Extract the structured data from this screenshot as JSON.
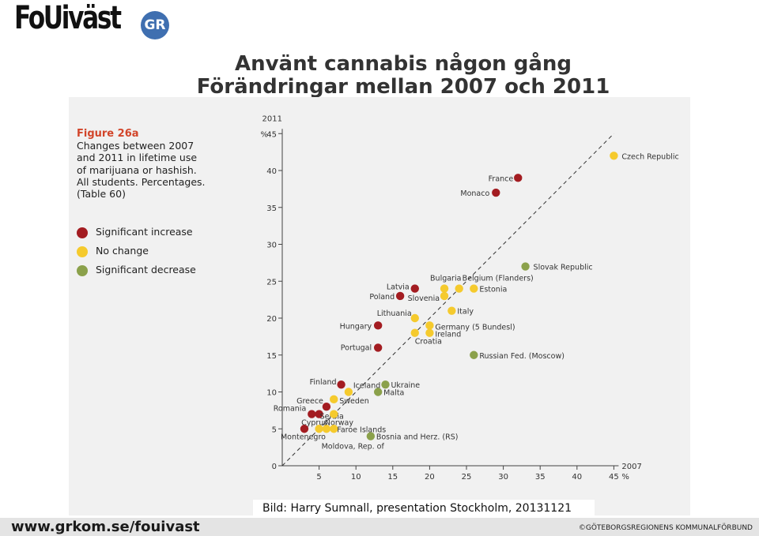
{
  "header": {
    "logo_text": "FoUiväst",
    "logo_badge": "GR",
    "title_line1": "Använt cannabis någon gång",
    "title_line2": "Förändringar mellan 2007 och 2011"
  },
  "figure": {
    "label": "Figure 26a",
    "desc_lines": [
      "Changes between 2007",
      "and 2011 in lifetime use",
      "of marijuana or hashish.",
      "All students. Percentages.",
      "(Table 60)"
    ]
  },
  "legend": [
    {
      "label": "Significant increase",
      "color": "#a31c21"
    },
    {
      "label": "No change",
      "color": "#f5ca2d"
    },
    {
      "label": "Significant decrease",
      "color": "#8ba14b"
    }
  ],
  "chart_data": {
    "type": "scatter",
    "x_year": "2007",
    "x_unit": "%",
    "y_year": "2011",
    "y_unit": "%",
    "xlim": [
      0,
      45
    ],
    "ylim": [
      0,
      45
    ],
    "x_ticks": [
      5,
      10,
      15,
      20,
      25,
      30,
      35,
      40,
      45
    ],
    "y_ticks": [
      0,
      5,
      10,
      15,
      20,
      25,
      30,
      35,
      40,
      45
    ],
    "diagonal": true,
    "points": [
      {
        "name": "Czech Republic",
        "x": 45,
        "y": 42,
        "status": "no_change"
      },
      {
        "name": "France",
        "x": 32,
        "y": 39,
        "status": "increase"
      },
      {
        "name": "Monaco",
        "x": 29,
        "y": 37,
        "status": "increase"
      },
      {
        "name": "Slovak Republic",
        "x": 33,
        "y": 27,
        "status": "decrease"
      },
      {
        "name": "Latvia",
        "x": 18,
        "y": 24,
        "status": "increase"
      },
      {
        "name": "Poland",
        "x": 16,
        "y": 23,
        "status": "increase"
      },
      {
        "name": "Bulgaria",
        "x": 22,
        "y": 24,
        "status": "no_change"
      },
      {
        "name": "Slovenia",
        "x": 22,
        "y": 23,
        "status": "no_change"
      },
      {
        "name": "Belgium (Flanders)",
        "x": 24,
        "y": 24,
        "status": "no_change"
      },
      {
        "name": "Estonia",
        "x": 26,
        "y": 24,
        "status": "no_change"
      },
      {
        "name": "Lithuania",
        "x": 18,
        "y": 20,
        "status": "no_change"
      },
      {
        "name": "Italy",
        "x": 23,
        "y": 21,
        "status": "no_change"
      },
      {
        "name": "Hungary",
        "x": 13,
        "y": 19,
        "status": "increase"
      },
      {
        "name": "Germany (5 Bundesl)",
        "x": 20,
        "y": 19,
        "status": "no_change"
      },
      {
        "name": "Ireland",
        "x": 20,
        "y": 18,
        "status": "no_change"
      },
      {
        "name": "Croatia",
        "x": 18,
        "y": 18,
        "status": "no_change"
      },
      {
        "name": "Portugal",
        "x": 13,
        "y": 16,
        "status": "increase"
      },
      {
        "name": "Russian Fed. (Moscow)",
        "x": 26,
        "y": 15,
        "status": "decrease"
      },
      {
        "name": "Finland",
        "x": 8,
        "y": 11,
        "status": "increase"
      },
      {
        "name": "Iceland",
        "x": 9,
        "y": 10,
        "status": "no_change"
      },
      {
        "name": "Ukraine",
        "x": 14,
        "y": 11,
        "status": "decrease"
      },
      {
        "name": "Malta",
        "x": 13,
        "y": 10,
        "status": "decrease"
      },
      {
        "name": "Sweden",
        "x": 7,
        "y": 9,
        "status": "no_change"
      },
      {
        "name": "Greece",
        "x": 6,
        "y": 8,
        "status": "increase"
      },
      {
        "name": "Romania",
        "x": 4,
        "y": 7,
        "status": "increase"
      },
      {
        "name": "Serbia",
        "x": 5,
        "y": 7,
        "status": "increase"
      },
      {
        "name": "Cyprus",
        "x": 7,
        "y": 7,
        "status": "no_change"
      },
      {
        "name": "Norway",
        "x": 6,
        "y": 5,
        "status": "no_change"
      },
      {
        "name": "Faroe Islands",
        "x": 7,
        "y": 5,
        "status": "no_change"
      },
      {
        "name": "Montenegro",
        "x": 3,
        "y": 5,
        "status": "increase"
      },
      {
        "name": "Moldova, Rep. of",
        "x": 5,
        "y": 5,
        "status": "no_change"
      },
      {
        "name": "Bosnia and Herz. (RS)",
        "x": 12,
        "y": 4,
        "status": "decrease"
      }
    ]
  },
  "caption": "Bild: Harry  Sumnall, presentation Stockholm, 20131121",
  "footer": {
    "url": "www.grkom.se/fouivast",
    "org": "©GÖTEBORGSREGIONENS KOMMUNALFÖRBUND"
  }
}
